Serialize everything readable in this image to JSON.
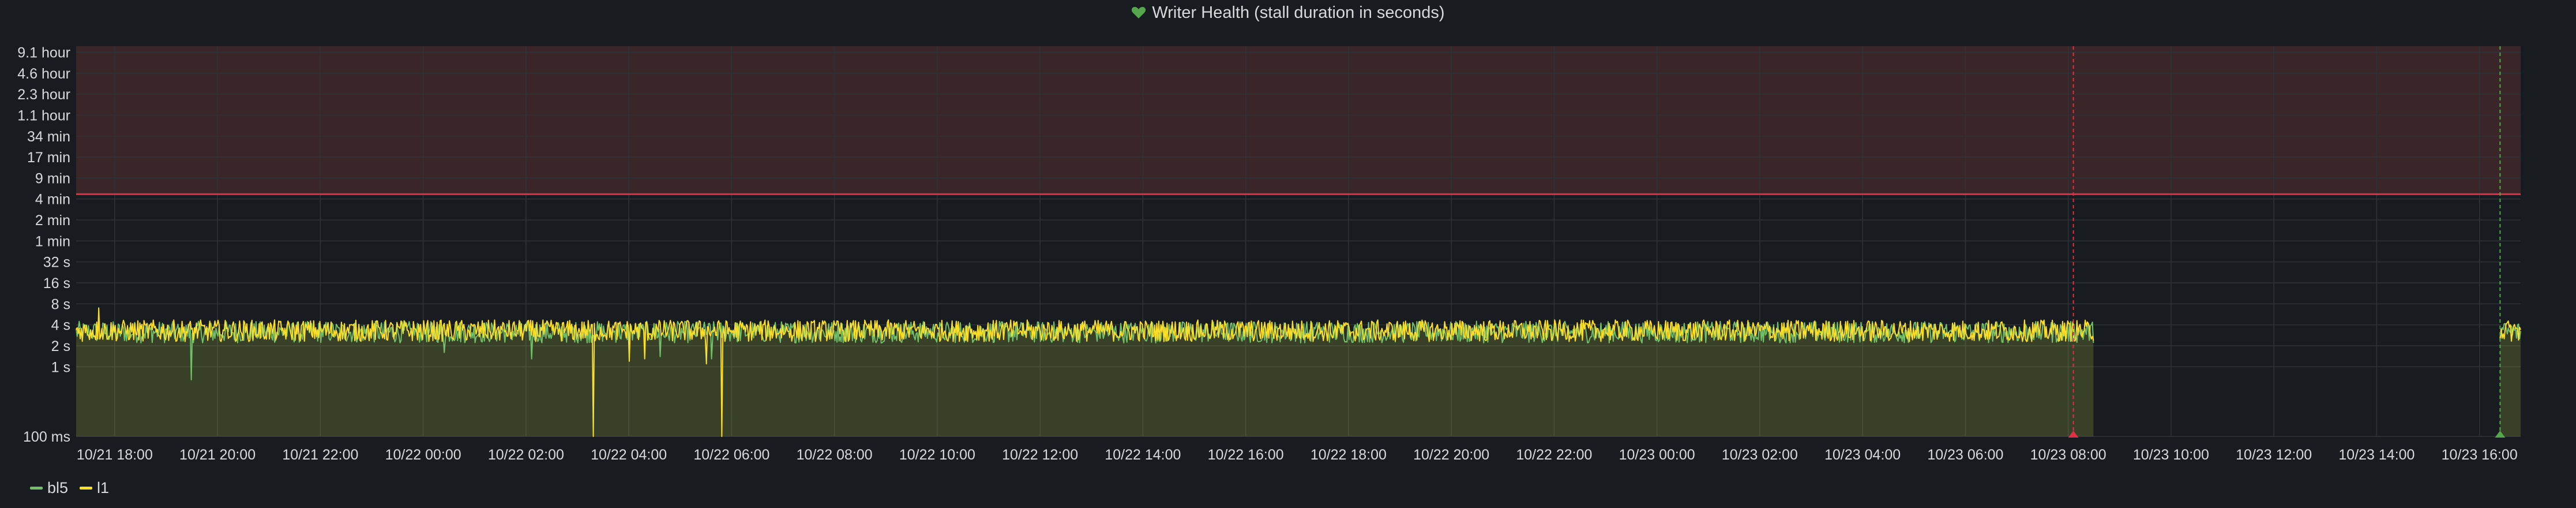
{
  "panel": {
    "title": "Writer Health (stall duration in seconds)",
    "status_icon": "heart-icon",
    "status_color": "#56a64b"
  },
  "colors": {
    "background": "#181b1f",
    "grid": "#2f3237",
    "axis_text": "#d8d9da",
    "threshold_line": "#e02f44",
    "threshold_fill": "#3a2629",
    "area_fill": "#3a3a27",
    "annotation_red": "#e02f44",
    "annotation_green": "#56a64b"
  },
  "legend": [
    {
      "name": "bl5",
      "color": "#73bf69"
    },
    {
      "name": "l1",
      "color": "#fade2a"
    }
  ],
  "chart_data": {
    "type": "line",
    "y_scale": "log2",
    "y_unit": "seconds",
    "ylim": [
      0.1,
      40000
    ],
    "y_ticks": [
      {
        "value": 0.1,
        "label": "100 ms"
      },
      {
        "value": 1,
        "label": "1 s"
      },
      {
        "value": 2,
        "label": "2 s"
      },
      {
        "value": 4,
        "label": "4 s"
      },
      {
        "value": 8,
        "label": "8 s"
      },
      {
        "value": 16,
        "label": "16 s"
      },
      {
        "value": 32,
        "label": "32 s"
      },
      {
        "value": 64,
        "label": "1 min"
      },
      {
        "value": 128,
        "label": "2 min"
      },
      {
        "value": 256,
        "label": "4 min"
      },
      {
        "value": 512,
        "label": "9 min"
      },
      {
        "value": 1024,
        "label": "17 min"
      },
      {
        "value": 2048,
        "label": "34 min"
      },
      {
        "value": 4096,
        "label": "1.1 hour"
      },
      {
        "value": 8192,
        "label": "2.3 hour"
      },
      {
        "value": 16384,
        "label": "4.6 hour"
      },
      {
        "value": 32768,
        "label": "9.1 hour"
      }
    ],
    "x_unit": "hours since 10/21 18:00",
    "xlim": [
      -0.75,
      46.8
    ],
    "x_ticks": [
      {
        "value": 0,
        "label": "10/21 18:00"
      },
      {
        "value": 2,
        "label": "10/21 20:00"
      },
      {
        "value": 4,
        "label": "10/21 22:00"
      },
      {
        "value": 6,
        "label": "10/22 00:00"
      },
      {
        "value": 8,
        "label": "10/22 02:00"
      },
      {
        "value": 10,
        "label": "10/22 04:00"
      },
      {
        "value": 12,
        "label": "10/22 06:00"
      },
      {
        "value": 14,
        "label": "10/22 08:00"
      },
      {
        "value": 16,
        "label": "10/22 10:00"
      },
      {
        "value": 18,
        "label": "10/22 12:00"
      },
      {
        "value": 20,
        "label": "10/22 14:00"
      },
      {
        "value": 22,
        "label": "10/22 16:00"
      },
      {
        "value": 24,
        "label": "10/22 18:00"
      },
      {
        "value": 26,
        "label": "10/22 20:00"
      },
      {
        "value": 28,
        "label": "10/22 22:00"
      },
      {
        "value": 30,
        "label": "10/23 00:00"
      },
      {
        "value": 32,
        "label": "10/23 02:00"
      },
      {
        "value": 34,
        "label": "10/23 04:00"
      },
      {
        "value": 36,
        "label": "10/23 06:00"
      },
      {
        "value": 38,
        "label": "10/23 08:00"
      },
      {
        "value": 40,
        "label": "10/23 10:00"
      },
      {
        "value": 42,
        "label": "10/23 12:00"
      },
      {
        "value": 44,
        "label": "10/23 14:00"
      },
      {
        "value": 46,
        "label": "10/23 16:00"
      }
    ],
    "threshold": {
      "value": 300,
      "fill": "above"
    },
    "annotations": [
      {
        "x": 38.1,
        "color": "red"
      },
      {
        "x": 46.4,
        "color": "green"
      }
    ],
    "data_ranges": [
      [
        -0.75,
        38.5
      ],
      [
        46.4,
        46.8
      ]
    ],
    "series": [
      {
        "name": "bl5",
        "typical_range": [
          2.2,
          4.5
        ],
        "spikes": [
          {
            "x": 1.5,
            "y": 0.65
          },
          {
            "x": 6.4,
            "y": 1.6
          },
          {
            "x": 8.1,
            "y": 1.3
          },
          {
            "x": 10.6,
            "y": 1.4
          },
          {
            "x": 11.6,
            "y": 1.3
          }
        ]
      },
      {
        "name": "l1",
        "typical_range": [
          2.3,
          4.7
        ],
        "spikes": [
          {
            "x": -0.3,
            "y": 7
          },
          {
            "x": 9.3,
            "y": 0.1
          },
          {
            "x": 10.0,
            "y": 1.2
          },
          {
            "x": 10.3,
            "y": 1.3
          },
          {
            "x": 11.5,
            "y": 1.1
          },
          {
            "x": 11.8,
            "y": 0.1
          }
        ]
      }
    ],
    "grid": true,
    "legend_position": "bottom-left"
  }
}
